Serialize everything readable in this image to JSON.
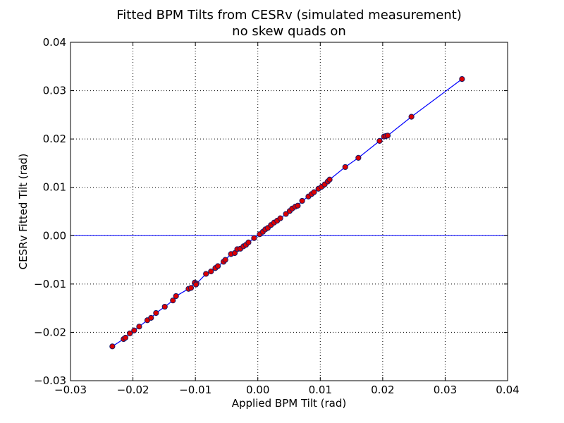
{
  "chart_data": {
    "type": "scatter",
    "title": "Fitted BPM Tilts from CESRv (simulated measurement)",
    "subtitle": "no skew quads on",
    "xlabel": "Applied BPM Tilt (rad)",
    "ylabel": "CESRv Fitted Tilt (rad)",
    "xlim": [
      -0.03,
      0.04
    ],
    "ylim": [
      -0.03,
      0.04
    ],
    "xticks": [
      -0.03,
      -0.02,
      -0.01,
      0.0,
      0.01,
      0.02,
      0.03,
      0.04
    ],
    "yticks": [
      -0.03,
      -0.02,
      -0.01,
      0.0,
      0.01,
      0.02,
      0.03,
      0.04
    ],
    "xtick_labels": [
      "−0.03",
      "−0.02",
      "−0.01",
      "0.00",
      "0.01",
      "0.02",
      "0.03",
      "0.04"
    ],
    "ytick_labels": [
      "−0.03",
      "−0.02",
      "−0.01",
      "0.00",
      "0.01",
      "0.02",
      "0.03",
      "0.04"
    ],
    "grid": true,
    "colors": {
      "points": "#dd0000",
      "point_edge": "#1a1a66",
      "line": "#0000ff",
      "zero_line": "#0000ff"
    },
    "series": [
      {
        "points": [
          [
            -0.0233,
            -0.0229
          ],
          [
            -0.0215,
            -0.0214
          ],
          [
            -0.0212,
            -0.0211
          ],
          [
            -0.0205,
            -0.0202
          ],
          [
            -0.0198,
            -0.0196
          ],
          [
            -0.019,
            -0.0188
          ],
          [
            -0.0177,
            -0.0175
          ],
          [
            -0.0171,
            -0.017
          ],
          [
            -0.0163,
            -0.016
          ],
          [
            -0.0149,
            -0.0147
          ],
          [
            -0.0136,
            -0.0134
          ],
          [
            -0.0131,
            -0.0125
          ],
          [
            -0.0111,
            -0.011
          ],
          [
            -0.0107,
            -0.0108
          ],
          [
            -0.0101,
            -0.0097
          ],
          [
            -0.0098,
            -0.0099
          ],
          [
            -0.0099,
            -0.0101
          ],
          [
            -0.0083,
            -0.0079
          ],
          [
            -0.0075,
            -0.0074
          ],
          [
            -0.0068,
            -0.0067
          ],
          [
            -0.0064,
            -0.0063
          ],
          [
            -0.0055,
            -0.0054
          ],
          [
            -0.0052,
            -0.005
          ],
          [
            -0.0043,
            -0.0038
          ],
          [
            -0.0037,
            -0.0036
          ],
          [
            -0.0033,
            -0.0028
          ],
          [
            -0.0028,
            -0.0027
          ],
          [
            -0.0023,
            -0.0022
          ],
          [
            -0.0019,
            -0.0019
          ],
          [
            -0.0015,
            -0.0014
          ],
          [
            -0.0006,
            -0.0005
          ],
          [
            0.0003,
            0.0003
          ],
          [
            0.0008,
            0.0008
          ],
          [
            0.0012,
            0.0013
          ],
          [
            0.0016,
            0.0016
          ],
          [
            0.0021,
            0.0022
          ],
          [
            0.0026,
            0.0027
          ],
          [
            0.0031,
            0.0031
          ],
          [
            0.0036,
            0.0036
          ],
          [
            0.0045,
            0.0045
          ],
          [
            0.0051,
            0.0051
          ],
          [
            0.0055,
            0.0056
          ],
          [
            0.006,
            0.006
          ],
          [
            0.0064,
            0.0062
          ],
          [
            0.0071,
            0.0072
          ],
          [
            0.0081,
            0.0081
          ],
          [
            0.0086,
            0.0086
          ],
          [
            0.009,
            0.009
          ],
          [
            0.0097,
            0.0097
          ],
          [
            0.0102,
            0.0101
          ],
          [
            0.0107,
            0.0106
          ],
          [
            0.0112,
            0.0112
          ],
          [
            0.0115,
            0.0116
          ],
          [
            0.014,
            0.0142
          ],
          [
            0.0161,
            0.0161
          ],
          [
            0.0195,
            0.0196
          ],
          [
            0.0202,
            0.0205
          ],
          [
            0.0205,
            0.0206
          ],
          [
            0.0208,
            0.0207
          ],
          [
            0.0246,
            0.0246
          ],
          [
            0.0327,
            0.0324
          ]
        ]
      }
    ]
  }
}
